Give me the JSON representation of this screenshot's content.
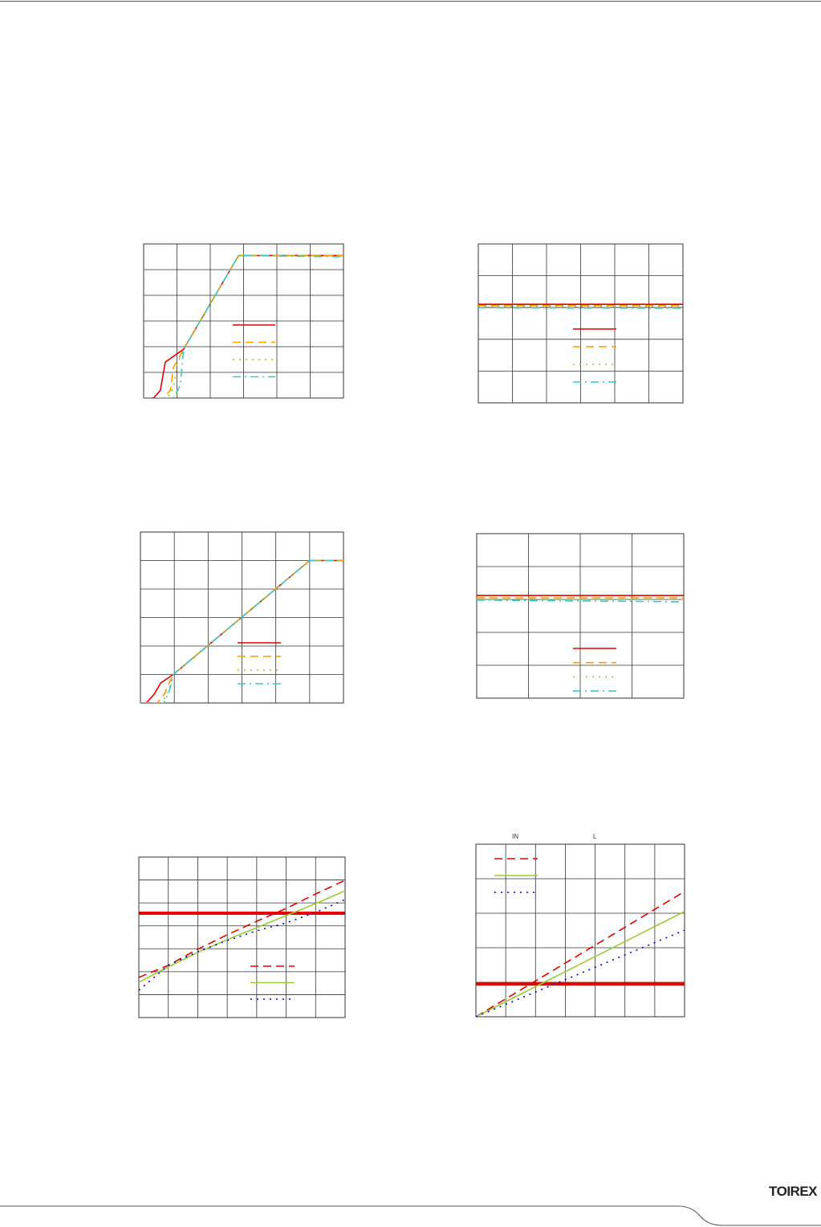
{
  "logo": "TOIREX",
  "chart_data": [
    {
      "type": "line",
      "xlim": [
        0,
        6
      ],
      "ylim": [
        0,
        6
      ],
      "xticks": [
        0,
        1,
        2,
        3,
        4,
        5,
        6
      ],
      "yticks": [
        0,
        1,
        2,
        3,
        4,
        5,
        6
      ],
      "grid": true,
      "series": [
        {
          "color": "#e60000",
          "style": "solid",
          "x": [
            0,
            0.3,
            0.5,
            0.65,
            1.2,
            2.85,
            6
          ],
          "values": [
            0,
            0,
            0.3,
            1.4,
            1.9,
            5.55,
            5.55
          ]
        },
        {
          "color": "#ff9900",
          "style": "dashed",
          "x": [
            0,
            0.6,
            0.8,
            0.9,
            1.2,
            2.85,
            6
          ],
          "values": [
            0,
            0,
            0.3,
            1.2,
            1.9,
            5.55,
            5.55
          ]
        },
        {
          "color": "#99cc00",
          "style": "dotted",
          "x": [
            0,
            0.7,
            0.9,
            1.0,
            1.2,
            2.85,
            6
          ],
          "values": [
            0,
            0,
            0.4,
            1.3,
            1.9,
            5.55,
            5.55
          ]
        },
        {
          "color": "#33cccc",
          "style": "dashdot",
          "x": [
            0,
            0.9,
            1.1,
            1.2,
            2.85,
            6
          ],
          "values": [
            0,
            0,
            0.5,
            1.9,
            5.55,
            5.5
          ]
        }
      ]
    },
    {
      "type": "line",
      "xlim": [
        0,
        6
      ],
      "ylim": [
        0,
        5
      ],
      "xticks": [
        0,
        1,
        2,
        3,
        4,
        5,
        6
      ],
      "yticks": [
        0,
        1,
        2,
        3,
        4,
        5
      ],
      "grid": true,
      "series": [
        {
          "color": "#e60000",
          "style": "solid",
          "x": [
            0,
            6
          ],
          "values": [
            3.1,
            3.1
          ]
        },
        {
          "color": "#ff9900",
          "style": "dashed",
          "x": [
            0,
            6
          ],
          "values": [
            3.06,
            3.06
          ]
        },
        {
          "color": "#99cc00",
          "style": "dotted",
          "x": [
            0,
            6
          ],
          "values": [
            3.03,
            3.03
          ]
        },
        {
          "color": "#33cccc",
          "style": "dashdot",
          "x": [
            0,
            6
          ],
          "values": [
            2.99,
            2.98
          ]
        }
      ]
    },
    {
      "type": "line",
      "xlim": [
        0,
        6
      ],
      "ylim": [
        0,
        6
      ],
      "xticks": [
        0,
        1,
        2,
        3,
        4,
        5,
        6
      ],
      "yticks": [
        0,
        1,
        2,
        3,
        4,
        5,
        6
      ],
      "grid": true,
      "series": [
        {
          "color": "#e60000",
          "style": "solid",
          "x": [
            0,
            0.17,
            0.4,
            0.6,
            0.97,
            5.0,
            6
          ],
          "values": [
            0,
            0,
            0.3,
            0.7,
            1.0,
            5.0,
            5.0
          ]
        },
        {
          "color": "#ff9900",
          "style": "dashed",
          "x": [
            0,
            0.5,
            0.7,
            0.85,
            0.97,
            5.0,
            6
          ],
          "values": [
            0,
            0,
            0.3,
            0.7,
            1.0,
            5.0,
            5.0
          ]
        },
        {
          "color": "#99cc00",
          "style": "dotted",
          "x": [
            0,
            0.6,
            0.8,
            0.9,
            0.97,
            5.0,
            6
          ],
          "values": [
            0,
            0,
            0.3,
            0.7,
            1.0,
            5.0,
            5.0
          ]
        },
        {
          "color": "#33cccc",
          "style": "dashdot",
          "x": [
            0,
            0.7,
            0.85,
            0.97,
            5.0,
            6
          ],
          "values": [
            0,
            0,
            0.4,
            1.0,
            5.0,
            5.0
          ]
        }
      ]
    },
    {
      "type": "line",
      "xlim": [
        0,
        4
      ],
      "ylim": [
        0,
        5
      ],
      "xticks": [
        0,
        1,
        2,
        3,
        4
      ],
      "yticks": [
        0,
        1,
        2,
        3,
        4,
        5
      ],
      "grid": true,
      "series": [
        {
          "color": "#e60000",
          "style": "solid",
          "x": [
            0,
            4
          ],
          "values": [
            3.12,
            3.12
          ]
        },
        {
          "color": "#ff9900",
          "style": "dashed",
          "x": [
            0,
            4
          ],
          "values": [
            3.05,
            3.05
          ]
        },
        {
          "color": "#99cc00",
          "style": "dotted",
          "x": [
            0,
            4
          ],
          "values": [
            3.0,
            3.0
          ]
        },
        {
          "color": "#33cccc",
          "style": "dashdot",
          "x": [
            0,
            4
          ],
          "values": [
            2.98,
            2.93
          ]
        }
      ]
    },
    {
      "type": "line",
      "xlim": [
        0,
        7
      ],
      "ylim": [
        0,
        7
      ],
      "xticks": [
        0,
        1,
        2,
        3,
        4,
        5,
        6,
        7
      ],
      "yticks": [
        0,
        1,
        2,
        3,
        4,
        5,
        6,
        7
      ],
      "grid": true,
      "series": [
        {
          "color": "#e60000",
          "style": "solid",
          "linewidth": 4,
          "x": [
            0,
            7
          ],
          "values": [
            4.55,
            4.55
          ]
        },
        {
          "color": "#e60000",
          "style": "dashed",
          "x": [
            0,
            1,
            2,
            3,
            4,
            5,
            6,
            7
          ],
          "values": [
            1.75,
            2.28,
            2.98,
            3.61,
            4.2,
            4.76,
            5.39,
            5.99
          ]
        },
        {
          "color": "#99cc33",
          "style": "solid",
          "x": [
            0,
            1,
            2,
            3,
            4,
            5,
            6,
            7
          ],
          "values": [
            1.54,
            2.21,
            2.84,
            3.4,
            3.92,
            4.45,
            4.97,
            5.53
          ]
        },
        {
          "color": "#0000ee",
          "style": "dotted",
          "x": [
            0,
            1,
            2,
            3,
            4,
            5,
            6,
            7
          ],
          "values": [
            1.19,
            2.28,
            2.87,
            3.36,
            3.78,
            4.13,
            4.59,
            5.15
          ]
        }
      ]
    },
    {
      "type": "line",
      "xlim": [
        0,
        7
      ],
      "ylim": [
        0,
        5
      ],
      "xticks": [
        0,
        1,
        2,
        3,
        4,
        5,
        6,
        7
      ],
      "yticks": [
        0,
        1,
        2,
        3,
        4,
        5
      ],
      "grid": true,
      "annotations": [
        "IN",
        "L"
      ],
      "series": [
        {
          "color": "#e60000",
          "style": "solid",
          "linewidth": 4,
          "x": [
            0,
            7
          ],
          "values": [
            0.95,
            0.95
          ]
        },
        {
          "color": "#e60000",
          "style": "dashed",
          "x": [
            0,
            7
          ],
          "values": [
            0,
            3.63
          ]
        },
        {
          "color": "#99cc33",
          "style": "solid",
          "x": [
            0,
            7
          ],
          "values": [
            0,
            3.05
          ]
        },
        {
          "color": "#0000ee",
          "style": "dotted",
          "x": [
            0,
            7
          ],
          "values": [
            0,
            2.51
          ]
        }
      ]
    }
  ]
}
